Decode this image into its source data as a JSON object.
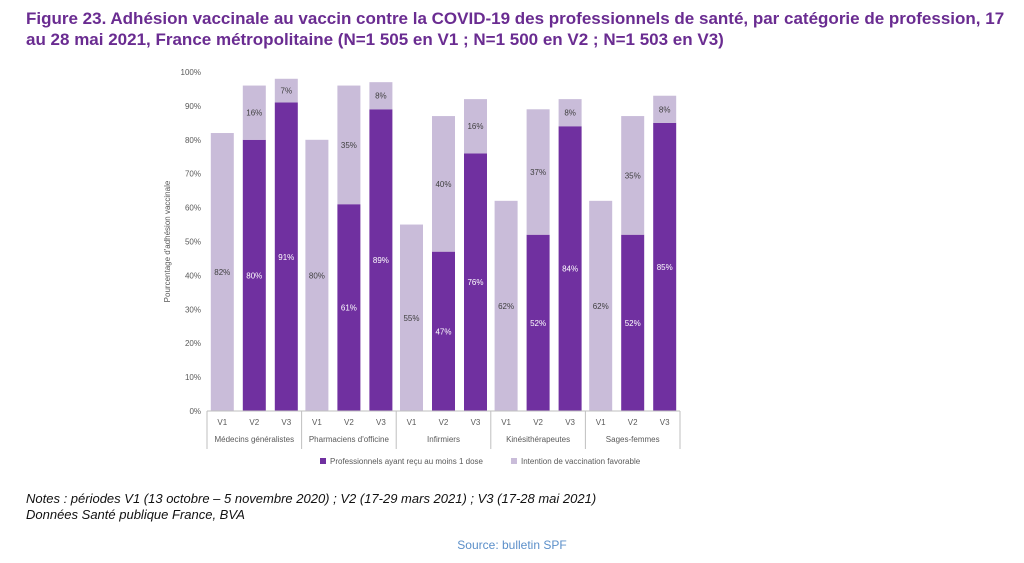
{
  "figure": {
    "title": "Figure 23. Adhésion vaccinale au vaccin contre la COVID-19 des professionnels de santé, par catégorie de profession, 17 au 28 mai 2021, France métropolitaine (N=1 505 en V1 ; N=1 500 en V2 ; N=1 503 en V3)",
    "notes_line1": "Notes : périodes V1 (13 octobre – 5 novembre 2020) ; V2 (17-29 mars 2021) ; V3 (17-28 mai 2021)",
    "notes_line2": "Données Santé publique France, BVA",
    "source": "Source: bulletin SPF"
  },
  "colors": {
    "dose": "#7030a0",
    "intention": "#c9bcd9",
    "axis": "#bfbfbf",
    "text": "#595959",
    "label_on_dark": "#ffffff",
    "label_on_light": "#404040"
  },
  "chart_data": {
    "type": "bar",
    "stacked": true,
    "ylabel": "Pourcentage d'adhésion vaccinale",
    "ylim": [
      0,
      100
    ],
    "yticks": [
      0,
      10,
      20,
      30,
      40,
      50,
      60,
      70,
      80,
      90,
      100
    ],
    "ytick_labels": [
      "0%",
      "10%",
      "20%",
      "30%",
      "40%",
      "50%",
      "60%",
      "70%",
      "80%",
      "90%",
      "100%"
    ],
    "grid": false,
    "legend_position": "bottom",
    "groups": [
      {
        "name": "Médecins généralistes",
        "periods": [
          "V1",
          "V2",
          "V3"
        ],
        "dose": [
          0,
          80,
          91
        ],
        "intention": [
          82,
          16,
          7
        ],
        "dose_labels": [
          "",
          "80%",
          "91%"
        ],
        "intention_labels": [
          "82%",
          "16%",
          "7%"
        ]
      },
      {
        "name": "Pharmaciens d'officine",
        "periods": [
          "V1",
          "V2",
          "V3"
        ],
        "dose": [
          0,
          61,
          89
        ],
        "intention": [
          80,
          35,
          8
        ],
        "dose_labels": [
          "",
          "61%",
          "89%"
        ],
        "intention_labels": [
          "80%",
          "35%",
          "8%"
        ]
      },
      {
        "name": "Infirmiers",
        "periods": [
          "V1",
          "V2",
          "V3"
        ],
        "dose": [
          0,
          47,
          76
        ],
        "intention": [
          55,
          40,
          16
        ],
        "dose_labels": [
          "",
          "47%",
          "76%"
        ],
        "intention_labels": [
          "55%",
          "40%",
          "16%"
        ]
      },
      {
        "name": "Kinésithérapeutes",
        "periods": [
          "V1",
          "V2",
          "V3"
        ],
        "dose": [
          0,
          52,
          84
        ],
        "intention": [
          62,
          37,
          8
        ],
        "dose_labels": [
          "",
          "52%",
          "84%"
        ],
        "intention_labels": [
          "62%",
          "37%",
          "8%"
        ]
      },
      {
        "name": "Sages-femmes",
        "periods": [
          "V1",
          "V2",
          "V3"
        ],
        "dose": [
          0,
          52,
          85
        ],
        "intention": [
          62,
          35,
          8
        ],
        "dose_labels": [
          "",
          "52%",
          "85%"
        ],
        "intention_labels": [
          "62%",
          "35%",
          "8%"
        ]
      }
    ],
    "series": [
      {
        "name": "Professionnels ayant reçu au moins 1 dose",
        "key": "dose"
      },
      {
        "name": "Intention de vaccination favorable",
        "key": "intention"
      }
    ]
  }
}
